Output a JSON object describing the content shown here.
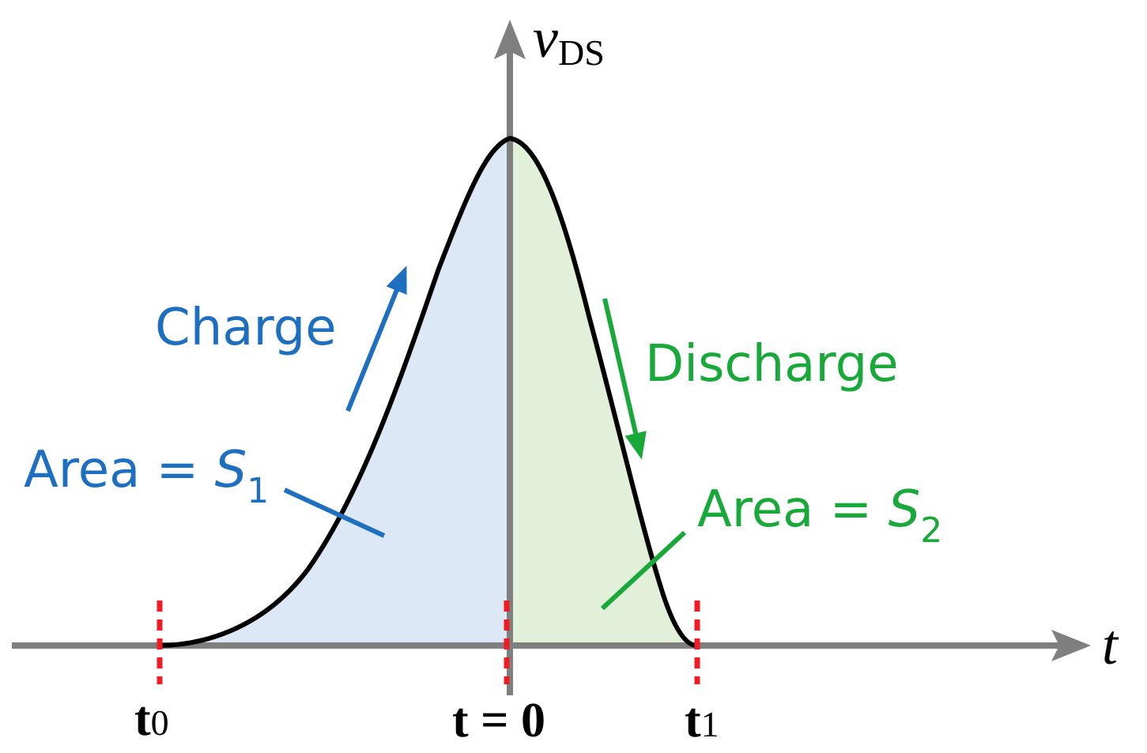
{
  "colors": {
    "axis": "#7f7f7f",
    "curve": "#000000",
    "charge": "#1f6fc0",
    "discharge": "#19a83a",
    "fill_left": "#dce8f5",
    "fill_right": "#e2f0d9",
    "marker": "#ee1c24"
  },
  "axes": {
    "y_label": "v",
    "y_label_sub": "DS",
    "x_label": "t"
  },
  "labels": {
    "charge": "Charge",
    "discharge": "Discharge",
    "area1_prefix": "Area = ",
    "area1_var": "S",
    "area1_sub": "1",
    "area2_prefix": "Area = ",
    "area2_var": "S",
    "area2_sub": "2"
  },
  "ticks": {
    "t0_main": "t",
    "t0_sub": "0",
    "origin": "t = 0",
    "t1_main": "t",
    "t1_sub": "1"
  }
}
